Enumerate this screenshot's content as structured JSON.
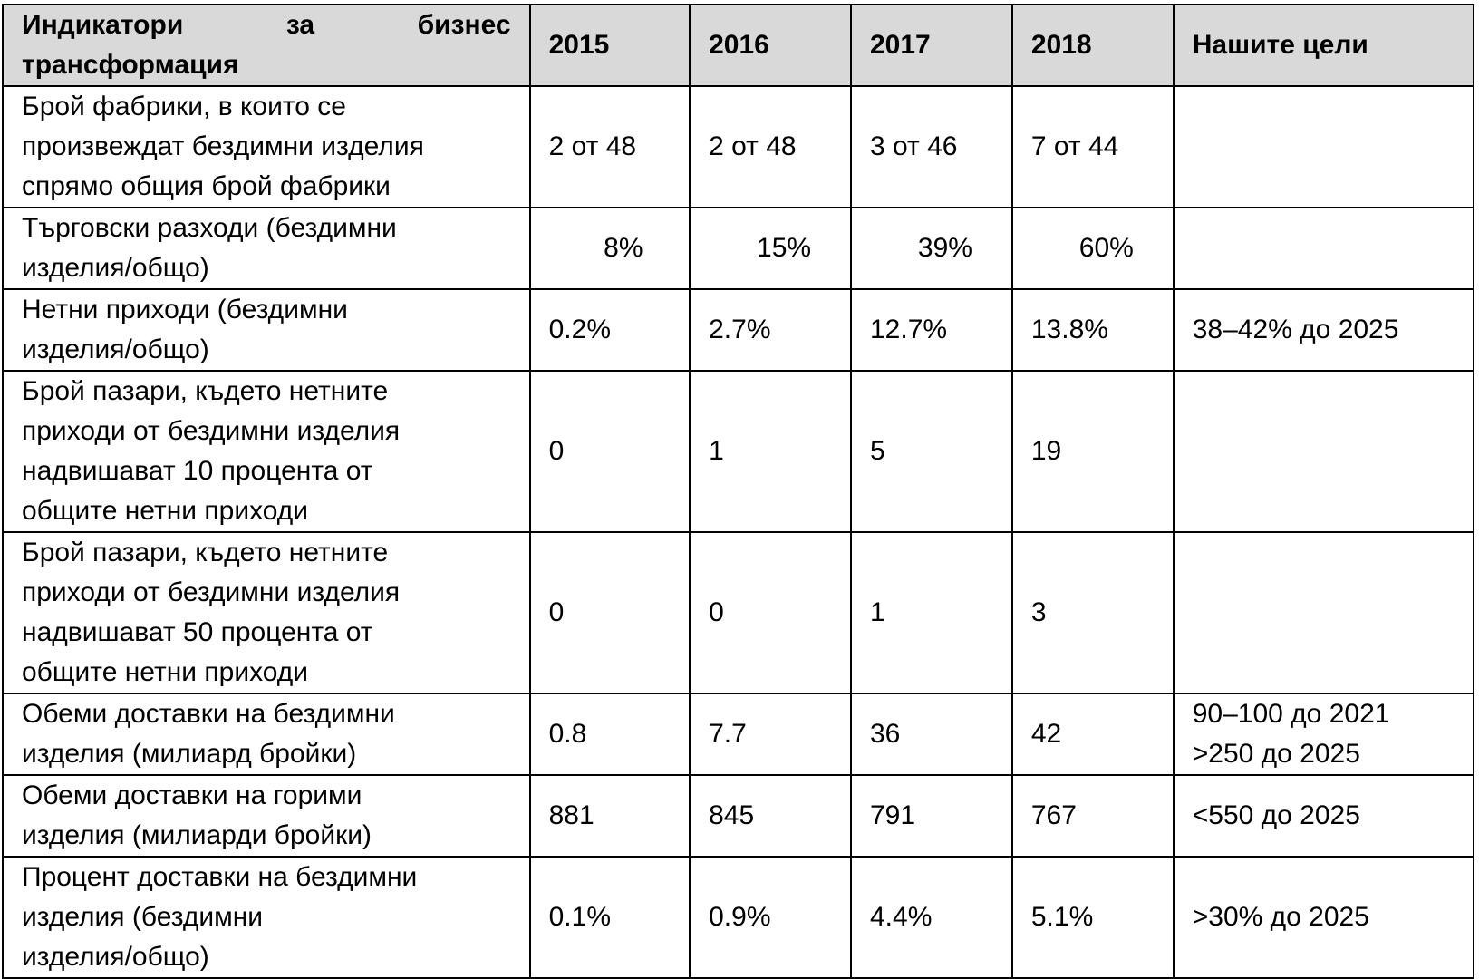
{
  "table": {
    "header": {
      "indicator_words": [
        "Индикатори",
        "за",
        "бизнес"
      ],
      "indicator_line2": "трансформация",
      "years": [
        "2015",
        "2016",
        "2017",
        "2018"
      ],
      "goals": "Нашите цели"
    },
    "rows": [
      {
        "indicator": [
          "Брой фабрики, в които се",
          "произвеждат бездимни изделия",
          "спрямо общия брой фабрики"
        ],
        "values": [
          "2 от 48",
          "2 от 48",
          "3 от 46",
          "7 от 44"
        ],
        "goals": []
      },
      {
        "indicator": [
          "Търговски разходи (бездимни",
          "изделия/общо)"
        ],
        "values": [
          "8%",
          "15%",
          "39%",
          "60%"
        ],
        "goals": []
      },
      {
        "indicator": [
          "Нетни приходи (бездимни",
          "изделия/общо)"
        ],
        "values": [
          "0.2%",
          "2.7%",
          "12.7%",
          "13.8%"
        ],
        "goals": [
          "38–42% до 2025"
        ]
      },
      {
        "indicator": [
          "Брой пазари, където нетните",
          "приходи от бездимни изделия",
          "надвишават 10 процента от",
          "общите нетни приходи"
        ],
        "values": [
          "0",
          "1",
          "5",
          "19"
        ],
        "goals": []
      },
      {
        "indicator": [
          "Брой пазари, където нетните",
          "приходи от бездимни изделия",
          "надвишават 50 процента от",
          "общите нетни приходи"
        ],
        "values": [
          "0",
          "0",
          "1",
          "3"
        ],
        "goals": []
      },
      {
        "indicator": [
          "Обеми доставки на бездимни",
          "изделия (милиард бройки)"
        ],
        "values": [
          "0.8",
          "7.7",
          "36",
          "42"
        ],
        "goals": [
          "90–100 до 2021",
          ">250 до 2025"
        ]
      },
      {
        "indicator": [
          "Обеми доставки на горими",
          "изделия (милиарди бройки)"
        ],
        "values": [
          "881",
          "845",
          "791",
          "767"
        ],
        "goals": [
          "<550 до 2025"
        ]
      },
      {
        "indicator": [
          "Процент доставки на бездимни",
          "изделия (бездимни",
          "изделия/общо)"
        ],
        "values": [
          "0.1%",
          "0.9%",
          "4.4%",
          "5.1%"
        ],
        "goals": [
          ">30% до 2025"
        ]
      }
    ]
  }
}
